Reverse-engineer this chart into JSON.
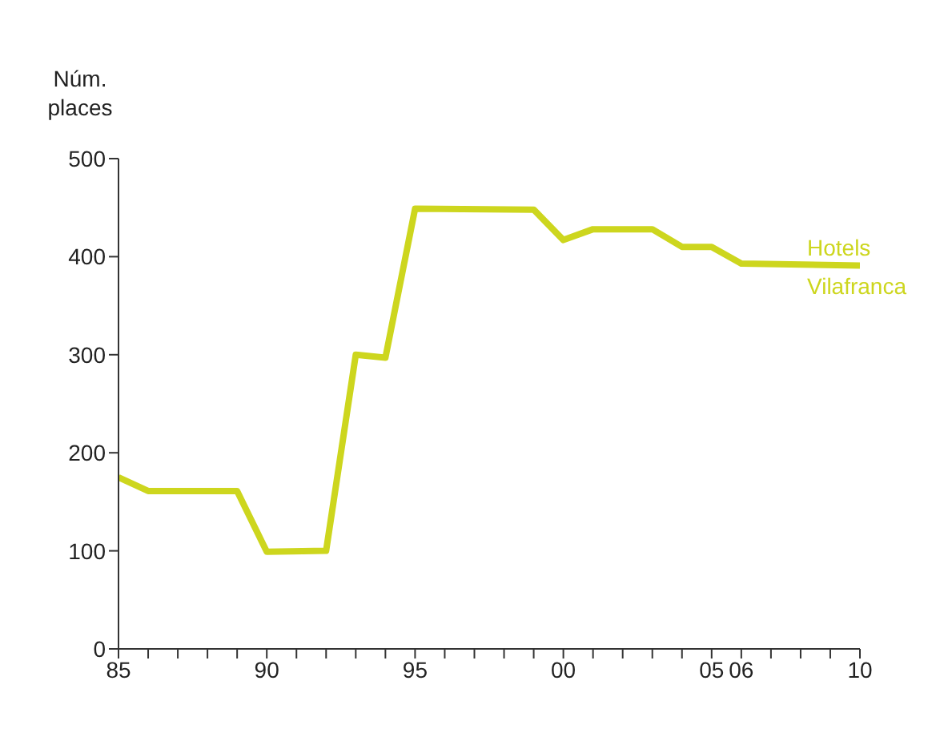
{
  "chart_data": {
    "type": "line",
    "ylabel": "Núm. places",
    "series": [
      {
        "name": "Hotels Vilafranca",
        "color": "#cdd61e",
        "x": [
          1985,
          1986,
          1989,
          1990,
          1992,
          1993,
          1994,
          1995,
          1999,
          2000,
          2001,
          2003,
          2004,
          2005,
          2006,
          2010
        ],
        "values": [
          175,
          161,
          161,
          99,
          100,
          300,
          297,
          449,
          448,
          417,
          428,
          428,
          410,
          410,
          393,
          391
        ]
      }
    ],
    "xlim": [
      1985,
      2010
    ],
    "xticks": [
      {
        "value": 1985,
        "label": "85"
      },
      {
        "value": 1986,
        "label": null
      },
      {
        "value": 1987,
        "label": null
      },
      {
        "value": 1988,
        "label": null
      },
      {
        "value": 1989,
        "label": null
      },
      {
        "value": 1990,
        "label": "90"
      },
      {
        "value": 1991,
        "label": null
      },
      {
        "value": 1992,
        "label": null
      },
      {
        "value": 1993,
        "label": null
      },
      {
        "value": 1994,
        "label": null
      },
      {
        "value": 1995,
        "label": "95"
      },
      {
        "value": 1996,
        "label": null
      },
      {
        "value": 1997,
        "label": null
      },
      {
        "value": 1998,
        "label": null
      },
      {
        "value": 1999,
        "label": null
      },
      {
        "value": 2000,
        "label": "00"
      },
      {
        "value": 2001,
        "label": null
      },
      {
        "value": 2002,
        "label": null
      },
      {
        "value": 2003,
        "label": null
      },
      {
        "value": 2004,
        "label": null
      },
      {
        "value": 2005,
        "label": "05"
      },
      {
        "value": 2006,
        "label": "06"
      },
      {
        "value": 2007,
        "label": null
      },
      {
        "value": 2008,
        "label": null
      },
      {
        "value": 2009,
        "label": null
      },
      {
        "value": 2010,
        "label": "10"
      }
    ],
    "ylim": [
      0,
      500
    ],
    "yticks": [
      0,
      100,
      200,
      300,
      400,
      500
    ],
    "grid": false,
    "marker": "none",
    "line_style": "solid"
  }
}
